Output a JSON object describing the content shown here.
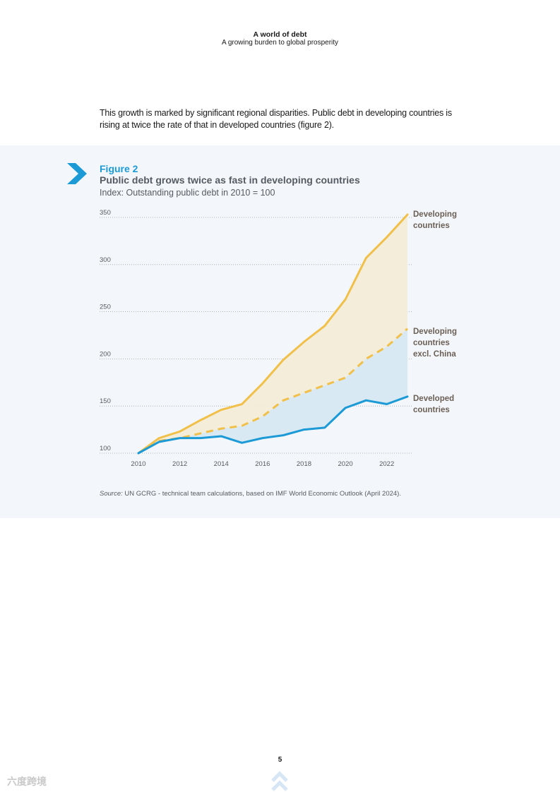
{
  "header": {
    "title": "A world of debt",
    "subtitle": "A growing burden to global prosperity"
  },
  "intro_text": "This growth is marked by significant regional disparities. Public debt in developing countries is rising at twice the rate of that in developed countries (figure 2).",
  "figure": {
    "label": "Figure 2",
    "title": "Public debt grows twice as fast in developing countries",
    "subtitle": "Index: Outstanding public debt in 2010 = 100"
  },
  "source": {
    "prefix": "Source:",
    "text": " UN GCRG - technical team calculations, based on IMF World Economic Outlook (April 2024)."
  },
  "page_number": "5",
  "watermark": "六度跨境",
  "colors": {
    "accent": "#1b9ad6",
    "developing": "#f0c04a",
    "developed": "#1b9ad6",
    "panel_bg": "#f3f7fb"
  },
  "chart_data": {
    "type": "line",
    "title": "Public debt grows twice as fast in developing countries",
    "subtitle": "Index: Outstanding public debt in 2010 = 100",
    "x": [
      2010,
      2011,
      2012,
      2013,
      2014,
      2015,
      2016,
      2017,
      2018,
      2019,
      2020,
      2021,
      2022,
      2023
    ],
    "x_ticks": [
      "2010",
      "2012",
      "2014",
      "2016",
      "2018",
      "2020",
      "2022"
    ],
    "y_ticks": [
      "100",
      "150",
      "200",
      "250",
      "300",
      "350"
    ],
    "ylim": [
      100,
      350
    ],
    "xlim": [
      2010,
      2023
    ],
    "grid": "horizontal dotted",
    "series": [
      {
        "name": "Developing countries",
        "label_lines": [
          "Developing",
          "countries"
        ],
        "style": "solid",
        "color": "#f0c04a",
        "values": [
          100,
          116,
          123,
          135,
          146,
          152,
          174,
          199,
          218,
          235,
          263,
          307,
          329,
          353
        ]
      },
      {
        "name": "Developing countries excl. China",
        "label_lines": [
          "Developing",
          "countries",
          "excl. China"
        ],
        "style": "dashed",
        "color": "#f0c04a",
        "values": [
          100,
          113,
          116,
          121,
          126,
          129,
          139,
          156,
          164,
          172,
          180,
          200,
          213,
          232
        ]
      },
      {
        "name": "Developed countries",
        "label_lines": [
          "Developed",
          "countries"
        ],
        "style": "solid",
        "color": "#1b9ad6",
        "values": [
          100,
          112,
          116,
          116,
          118,
          111,
          116,
          119,
          125,
          127,
          148,
          156,
          152,
          160
        ]
      }
    ],
    "legend": "direct labels at right end of lines"
  }
}
